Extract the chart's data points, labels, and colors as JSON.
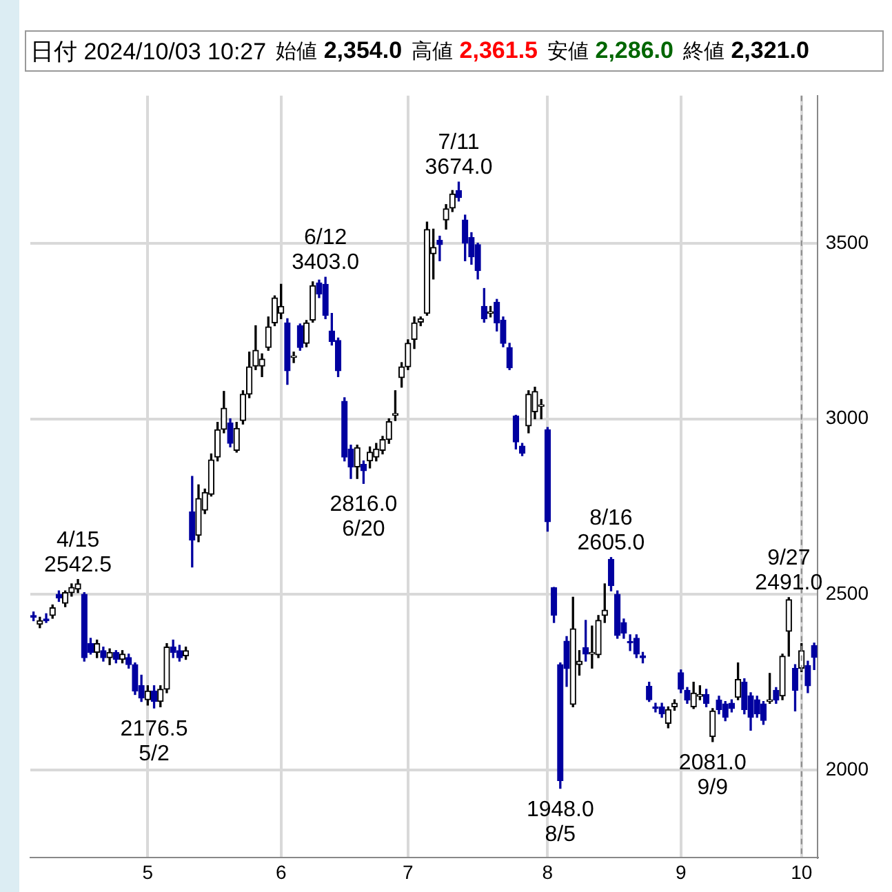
{
  "chart_data": {
    "type": "candlestick",
    "title": "日付 2024/10/03 10:27",
    "subtitle": "始値 2,354.0 高値 2,361.5 安値 2,286.0 終値 2,321.0",
    "annotations": [
      {
        "text": "4/15\n2542.5",
        "y": 2542.5
      },
      {
        "text": "2176.5\n5/2",
        "y": 2176.5
      },
      {
        "text": "6/12\n3403.0",
        "y": 3403
      },
      {
        "text": "2816.0\n6/20",
        "y": 2816
      },
      {
        "text": "7/11\n3674.0",
        "y": 3674
      },
      {
        "text": "1948.0\n8/5",
        "y": 1948
      },
      {
        "text": "8/16\n2605.0",
        "y": 2605
      },
      {
        "text": "2081.0\n9/9",
        "y": 2081
      },
      {
        "text": "9/27\n2491.0",
        "y": 2491
      }
    ],
    "categories": [
      null,
      null,
      null,
      null,
      null,
      null,
      null,
      null,
      null,
      null,
      null,
      null,
      null,
      null,
      null,
      null,
      null,
      null,
      "5",
      null,
      null,
      null,
      null,
      null,
      null,
      null,
      null,
      null,
      null,
      null,
      null,
      null,
      null,
      null,
      null,
      null,
      null,
      null,
      null,
      "6",
      null,
      null,
      null,
      null,
      null,
      null,
      null,
      null,
      null,
      null,
      null,
      null,
      null,
      null,
      null,
      null,
      null,
      null,
      null,
      "7",
      null,
      null,
      null,
      null,
      null,
      null,
      null,
      null,
      null,
      null,
      null,
      null,
      null,
      null,
      null,
      null,
      null,
      null,
      null,
      null,
      null,
      "8",
      null,
      null,
      null,
      null,
      null,
      null,
      null,
      null,
      null,
      null,
      null,
      null,
      null,
      null,
      null,
      null,
      null,
      null,
      null,
      null,
      "9",
      null,
      null,
      null,
      null,
      null,
      null,
      null,
      null,
      null,
      null,
      null,
      null,
      null,
      null,
      null,
      null,
      null,
      null,
      "10",
      null,
      null
    ],
    "series": [
      {
        "color": "#000000",
        "ohlc": [
          null,
          [
            2415,
            2435,
            2405,
            2425
          ],
          null,
          [
            2440,
            2470,
            2432,
            2462
          ],
          null,
          [
            2475,
            2510,
            2465,
            2505
          ],
          [
            2505,
            2530,
            2495,
            2520
          ],
          [
            2515,
            2542.5,
            2505,
            2530
          ],
          null,
          null,
          [
            2335,
            2370,
            2320,
            2360
          ],
          null,
          [
            2320,
            2345,
            2300,
            2335
          ],
          null,
          [
            2315,
            2340,
            2305,
            2330
          ],
          null,
          null,
          null,
          [
            2200,
            2240,
            2185,
            2225
          ],
          null,
          [
            2195,
            2240,
            2180,
            2230
          ],
          [
            2230,
            2360,
            2220,
            2350
          ],
          null,
          null,
          [
            2325,
            2350,
            2315,
            2340
          ],
          null,
          [
            2668,
            2812,
            2650,
            2773
          ],
          [
            2740,
            2800,
            2730,
            2790
          ],
          [
            2785,
            2900,
            2780,
            2883
          ],
          [
            2891,
            2990,
            2880,
            2969
          ],
          [
            2970,
            3078,
            2960,
            3030
          ],
          null,
          [
            2910,
            2990,
            2905,
            2973
          ],
          [
            2995,
            3080,
            2985,
            3070
          ],
          [
            3070,
            3190,
            3060,
            3148
          ],
          [
            3150,
            3265,
            3140,
            3195
          ],
          [
            3150,
            3185,
            3120,
            3170
          ],
          [
            3203,
            3290,
            3195,
            3262
          ],
          [
            3273,
            3350,
            3265,
            3344
          ],
          [
            3300,
            3383,
            3285,
            3320
          ],
          null,
          [
            3175,
            3190,
            3160,
            3178
          ],
          null,
          [
            3215,
            3280,
            3205,
            3273
          ],
          [
            3281,
            3390,
            3275,
            3379
          ],
          null,
          null,
          null,
          null,
          null,
          null,
          [
            2863,
            2925,
            2830,
            2918
          ],
          null,
          [
            2880,
            2920,
            2860,
            2905
          ],
          [
            2891,
            2930,
            2880,
            2914
          ],
          [
            2910,
            2950,
            2900,
            2941
          ],
          [
            2941,
            3000,
            2930,
            2992
          ],
          [
            3010,
            3080,
            2995,
            3015
          ],
          [
            3117,
            3160,
            3090,
            3148
          ],
          [
            3148,
            3225,
            3140,
            3215
          ],
          [
            3226,
            3290,
            3200,
            3273
          ],
          [
            3275,
            3290,
            3265,
            3285
          ],
          [
            3300,
            3560,
            3295,
            3539
          ],
          [
            3470,
            3540,
            3398,
            3488
          ],
          null,
          [
            3566,
            3610,
            3540,
            3598
          ],
          [
            3600,
            3650,
            3590,
            3640
          ],
          null,
          null,
          null,
          null,
          null,
          [
            3300,
            3320,
            3290,
            3305
          ],
          null,
          null,
          null,
          null,
          null,
          [
            2980,
            3080,
            2960,
            3070
          ],
          [
            3020,
            3090,
            3000,
            3078
          ],
          [
            3035,
            3055,
            3000,
            3040
          ],
          null,
          null,
          null,
          null,
          [
            2187,
            2492,
            2180,
            2402
          ],
          [
            2300,
            2340,
            2270,
            2310
          ],
          null,
          [
            2330,
            2410,
            2290,
            2335
          ],
          [
            2328,
            2440,
            2320,
            2426
          ],
          [
            2440,
            2530,
            2420,
            2455
          ],
          null,
          null,
          null,
          null,
          null,
          null,
          null,
          null,
          null,
          [
            2133,
            2180,
            2120,
            2172
          ],
          [
            2180,
            2200,
            2170,
            2190
          ],
          null,
          null,
          [
            2180,
            2250,
            2175,
            2219
          ],
          [
            2210,
            2240,
            2200,
            2215
          ],
          null,
          [
            2095,
            2175,
            2081,
            2168
          ],
          null,
          null,
          null,
          [
            2207,
            2305,
            2200,
            2258
          ],
          null,
          null,
          null,
          null,
          [
            2195,
            2275,
            2190,
            2200
          ],
          null,
          [
            2211,
            2330,
            2200,
            2324
          ],
          [
            2395,
            2491,
            2324,
            2485
          ],
          null,
          [
            2290,
            2360,
            2280,
            2340
          ],
          null,
          null
        ]
      },
      {
        "color": "#0000a0",
        "ohlc": [
          [
            2440,
            2450,
            2425,
            2435
          ],
          null,
          [
            2430,
            2445,
            2420,
            2425
          ],
          null,
          [
            2500,
            2510,
            2480,
            2490
          ],
          null,
          null,
          null,
          [
            2500,
            2505,
            2310,
            2320
          ],
          [
            2360,
            2375,
            2330,
            2335
          ],
          null,
          [
            2340,
            2350,
            2310,
            2320
          ],
          null,
          [
            2335,
            2340,
            2305,
            2315
          ],
          null,
          [
            2320,
            2330,
            2290,
            2300
          ],
          [
            2300,
            2305,
            2215,
            2225
          ],
          [
            2240,
            2270,
            2195,
            2205
          ],
          null,
          [
            2225,
            2240,
            2176.5,
            2195
          ],
          null,
          null,
          [
            2350,
            2370,
            2320,
            2335
          ],
          [
            2340,
            2355,
            2310,
            2320
          ],
          null,
          [
            2735,
            2836,
            2578,
            2655
          ],
          null,
          null,
          null,
          null,
          null,
          [
            2988,
            3000,
            2920,
            2930
          ],
          null,
          null,
          null,
          null,
          null,
          null,
          null,
          null,
          [
            3273,
            3285,
            3098,
            3137
          ],
          null,
          [
            3265,
            3270,
            3195,
            3203
          ],
          null,
          null,
          [
            3387,
            3395,
            3345,
            3355
          ],
          [
            3383,
            3403,
            3285,
            3295
          ],
          [
            3250,
            3300,
            3210,
            3220
          ],
          [
            3223,
            3230,
            3120,
            3137
          ],
          [
            3050,
            3060,
            2880,
            2891
          ],
          [
            2914,
            2925,
            2830,
            2863
          ],
          null,
          [
            2870,
            2880,
            2816,
            2852
          ],
          null,
          null,
          null,
          null,
          null,
          null,
          null,
          null,
          null,
          null,
          null,
          [
            3508,
            3520,
            3450,
            3496
          ],
          null,
          null,
          [
            3650,
            3674,
            3620,
            3630
          ],
          [
            3566,
            3580,
            3450,
            3500
          ],
          [
            3516,
            3530,
            3440,
            3461
          ],
          [
            3496,
            3500,
            3398,
            3422
          ],
          [
            3320,
            3371,
            3275,
            3285
          ],
          null,
          [
            3332,
            3340,
            3250,
            3273
          ],
          [
            3281,
            3290,
            3205,
            3215
          ],
          [
            3203,
            3215,
            3140,
            3145
          ],
          [
            3008,
            3010,
            2914,
            2934
          ],
          [
            2922,
            2930,
            2895,
            2902
          ],
          null,
          null,
          null,
          [
            2969,
            2975,
            2680,
            2707
          ],
          [
            2519,
            2520,
            2420,
            2441
          ],
          [
            2300,
            2305,
            1948,
            1970
          ],
          [
            2367,
            2380,
            2238,
            2289
          ],
          null,
          null,
          [
            2348,
            2426,
            2310,
            2330
          ],
          null,
          null,
          null,
          [
            2600,
            2605,
            2510,
            2525
          ],
          [
            2500,
            2510,
            2375,
            2383
          ],
          [
            2420,
            2430,
            2375,
            2390
          ],
          [
            2365,
            2385,
            2340,
            2362
          ],
          [
            2375,
            2385,
            2320,
            2330
          ],
          [
            2325,
            2335,
            2305,
            2320
          ],
          [
            2238,
            2250,
            2195,
            2200
          ],
          [
            2180,
            2190,
            2165,
            2175
          ],
          [
            2180,
            2190,
            2150,
            2160
          ],
          null,
          null,
          [
            2277,
            2285,
            2220,
            2230
          ],
          [
            2227,
            2235,
            2190,
            2199
          ],
          null,
          null,
          [
            2215,
            2230,
            2180,
            2190
          ],
          null,
          [
            2199,
            2210,
            2160,
            2172
          ],
          [
            2188,
            2195,
            2140,
            2150
          ],
          [
            2190,
            2200,
            2165,
            2175
          ],
          null,
          [
            2250,
            2260,
            2160,
            2172
          ],
          [
            2211,
            2220,
            2113,
            2150
          ],
          [
            2200,
            2210,
            2150,
            2160
          ],
          [
            2188,
            2195,
            2130,
            2141
          ],
          null,
          [
            2227,
            2235,
            2190,
            2199
          ],
          null,
          null,
          [
            2289,
            2300,
            2168,
            2227
          ],
          null,
          [
            2297,
            2310,
            2220,
            2240
          ],
          [
            2354,
            2361.5,
            2286,
            2321
          ]
        ]
      }
    ],
    "ylim": [
      1750,
      3920
    ],
    "yticks": [
      2000,
      2500,
      3000,
      3500
    ],
    "ref_lines": [
      {
        "axis": "x",
        "value": "10",
        "color": "#888888",
        "line_style": "dashed"
      }
    ],
    "grid": true
  }
}
